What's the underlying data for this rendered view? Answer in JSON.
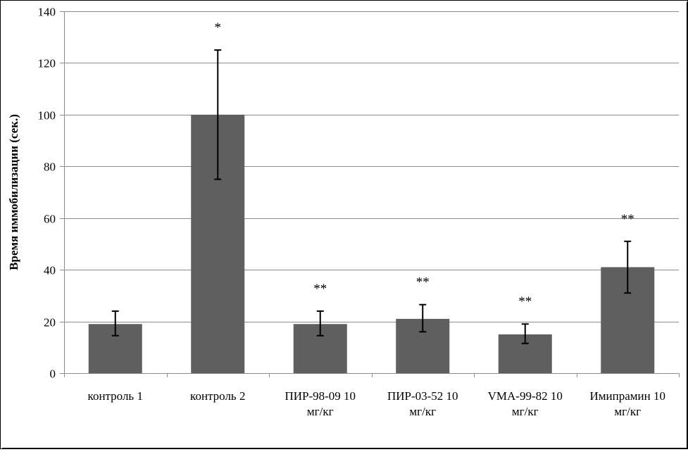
{
  "chart_data": {
    "type": "bar",
    "title": "",
    "xlabel": "",
    "ylabel": "Время иммобилизации (сек.)",
    "ylim": [
      0,
      140
    ],
    "yticks": [
      0,
      20,
      40,
      60,
      80,
      100,
      120,
      140
    ],
    "grid": true,
    "categories": [
      [
        "контроль 1"
      ],
      [
        "контроль  2"
      ],
      [
        "ПИР-98-09  10",
        "мг/кг"
      ],
      [
        "ПИР-03-52 10",
        "мг/кг"
      ],
      [
        "VMA-99-82 10",
        "мг/кг"
      ],
      [
        "Имипрамин 10",
        "мг/кг"
      ]
    ],
    "values": [
      19,
      100,
      19,
      21,
      15,
      41
    ],
    "errors": [
      [
        14.5,
        24
      ],
      [
        75,
        125
      ],
      [
        14.5,
        24
      ],
      [
        16,
        26.5
      ],
      [
        11.5,
        19
      ],
      [
        31,
        51
      ]
    ],
    "annotations": [
      "",
      "*",
      "**",
      "**",
      "**",
      "**"
    ],
    "colors": {
      "bar": "#5f5f5f",
      "grid": "#8c8c8c",
      "axis": "#8c8c8c",
      "error": "#000000"
    }
  }
}
